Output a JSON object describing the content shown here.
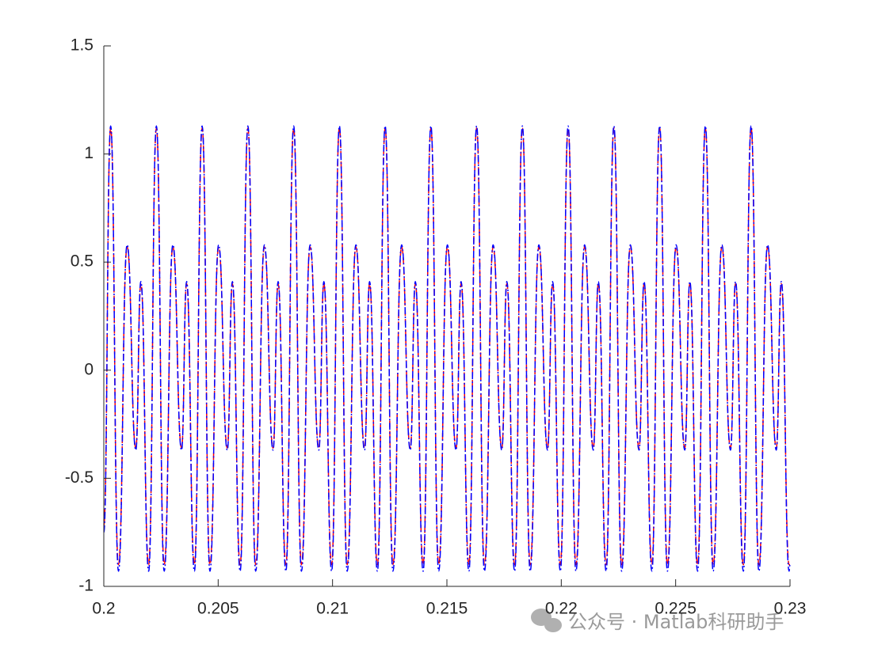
{
  "chart_data": {
    "type": "line",
    "x": [
      0.2,
      0.2003,
      0.20064,
      0.20102,
      0.2014,
      0.20162,
      0.20196,
      0.2023,
      0.20264,
      0.20302,
      0.2034,
      0.20362,
      0.20396,
      0.2043,
      0.20464,
      0.20502,
      0.2054,
      0.20562,
      0.20596,
      0.2063,
      0.20664,
      0.20702,
      0.2074,
      0.20762,
      0.20796,
      0.2083,
      0.20864,
      0.20902,
      0.2094,
      0.20962,
      0.20996,
      0.2103,
      0.21064,
      0.21102,
      0.2114,
      0.21162,
      0.21196,
      0.2123,
      0.21264,
      0.21302,
      0.2134,
      0.21362,
      0.21396,
      0.2143,
      0.21464,
      0.21502,
      0.2154,
      0.21562,
      0.21596,
      0.2163,
      0.21664,
      0.21702,
      0.2174,
      0.21762,
      0.21796,
      0.2183,
      0.21864,
      0.21902,
      0.2194,
      0.21962,
      0.21996,
      0.2203,
      0.22064,
      0.22102,
      0.2214,
      0.22162,
      0.22196,
      0.2223,
      0.22264,
      0.22302,
      0.2234,
      0.22362,
      0.22396,
      0.2243,
      0.22464,
      0.22502,
      0.2254,
      0.22562,
      0.22596,
      0.2263,
      0.22664,
      0.22702,
      0.2274,
      0.22762,
      0.22796,
      0.2283,
      0.22864,
      0.22902,
      0.2294,
      0.22962,
      0.22996,
      0.23
    ],
    "series": [
      {
        "color": "#ff0000",
        "linestyle": "dashed",
        "values": [
          -0.72,
          1.12,
          -0.9,
          0.57,
          -0.36,
          0.4,
          -0.9,
          1.12,
          -0.9,
          0.57,
          -0.36,
          0.4,
          -0.9,
          1.12,
          -0.9,
          0.57,
          -0.36,
          0.4,
          -0.9,
          1.12,
          -0.9,
          0.57,
          -0.36,
          0.4,
          -0.9,
          1.12,
          -0.9,
          0.57,
          -0.36,
          0.4,
          -0.9,
          1.12,
          -0.9,
          0.57,
          -0.36,
          0.4,
          -0.9,
          1.12,
          -0.9,
          0.57,
          -0.36,
          0.4,
          -0.9,
          1.12,
          -0.9,
          0.57,
          -0.36,
          0.4,
          -0.9,
          1.12,
          -0.9,
          0.57,
          -0.36,
          0.4,
          -0.9,
          1.12,
          -0.9,
          0.57,
          -0.36,
          0.4,
          -0.9,
          1.12,
          -0.9,
          0.57,
          -0.36,
          0.4,
          -0.9,
          1.12,
          -0.9,
          0.57,
          -0.36,
          0.4,
          -0.9,
          1.12,
          -0.9,
          0.57,
          -0.36,
          0.4,
          -0.9,
          1.12,
          -0.9,
          0.57,
          -0.36,
          0.4,
          -0.9,
          1.12,
          -0.9,
          0.57,
          -0.36,
          0.4,
          -0.9,
          -0.9
        ]
      },
      {
        "color": "#0000ff",
        "linestyle": "dashdot",
        "values": [
          -0.75,
          1.13,
          -0.93,
          0.58,
          -0.37,
          0.41,
          -0.93,
          1.13,
          -0.93,
          0.58,
          -0.37,
          0.41,
          -0.93,
          1.13,
          -0.93,
          0.58,
          -0.37,
          0.41,
          -0.93,
          1.13,
          -0.93,
          0.58,
          -0.37,
          0.41,
          -0.93,
          1.13,
          -0.93,
          0.58,
          -0.37,
          0.41,
          -0.93,
          1.13,
          -0.93,
          0.58,
          -0.37,
          0.41,
          -0.93,
          1.13,
          -0.93,
          0.58,
          -0.37,
          0.41,
          -0.93,
          1.13,
          -0.93,
          0.58,
          -0.37,
          0.41,
          -0.93,
          1.13,
          -0.93,
          0.58,
          -0.37,
          0.41,
          -0.93,
          1.13,
          -0.93,
          0.58,
          -0.37,
          0.41,
          -0.93,
          1.13,
          -0.93,
          0.58,
          -0.37,
          0.41,
          -0.93,
          1.13,
          -0.93,
          0.58,
          -0.37,
          0.41,
          -0.93,
          1.13,
          -0.93,
          0.58,
          -0.37,
          0.41,
          -0.93,
          1.13,
          -0.93,
          0.58,
          -0.37,
          0.41,
          -0.93,
          1.13,
          -0.93,
          0.58,
          -0.37,
          0.41,
          -0.93,
          -0.9
        ]
      }
    ],
    "xlim": [
      0.2,
      0.23
    ],
    "xticks": [
      0.2,
      0.205,
      0.21,
      0.215,
      0.22,
      0.225,
      0.23
    ],
    "ylim": [
      -1,
      1.5
    ],
    "yticks": [
      -1,
      -0.5,
      0,
      0.5,
      1,
      1.5
    ],
    "grid": false,
    "watermark": "公众号 · Matlab科研助手"
  }
}
